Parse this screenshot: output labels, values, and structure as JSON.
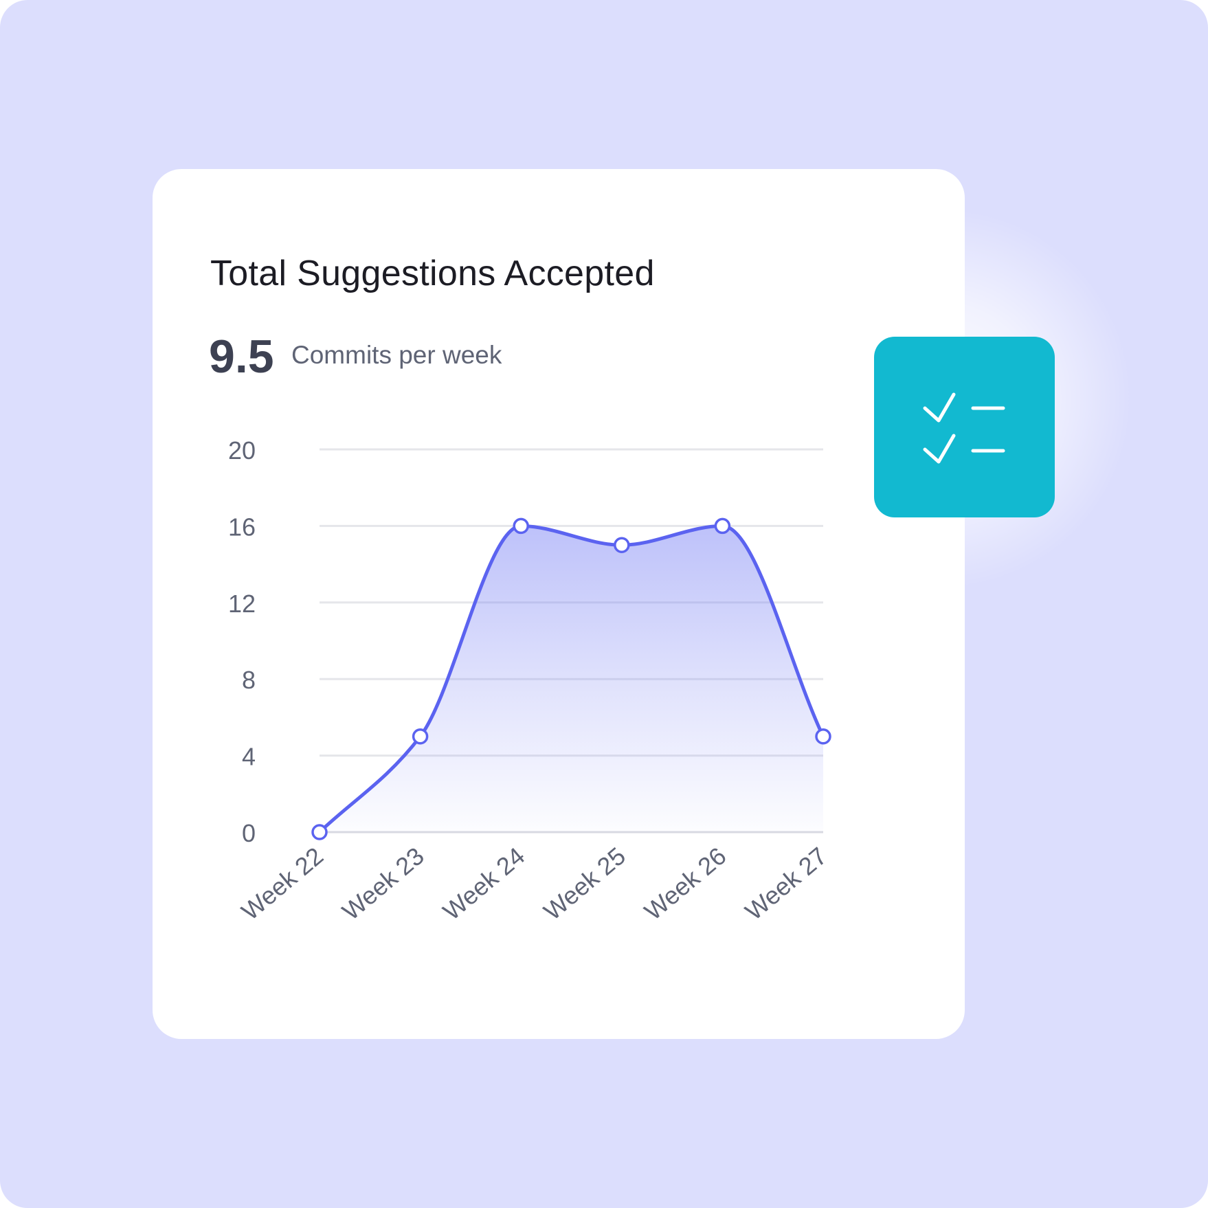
{
  "colors": {
    "background": "#dcdefd",
    "card": "#ffffff",
    "line": "#5b63f0",
    "area": "#7c84f4",
    "grid": "#e5e6ea",
    "badge": "#12b9d0",
    "badge_icon": "#ffffff"
  },
  "header": {
    "title": "Total Suggestions Accepted",
    "metric_value": "9.5",
    "metric_label": "Commits per week"
  },
  "badge": {
    "icon": "checklist-icon"
  },
  "chart_data": {
    "type": "area",
    "categories": [
      "Week 22",
      "Week 23",
      "Week 24",
      "Week 25",
      "Week 26",
      "Week 27"
    ],
    "series": [
      {
        "values": [
          0,
          5,
          16,
          15,
          16,
          5
        ]
      }
    ],
    "yticks": [
      0,
      4,
      8,
      12,
      16,
      20
    ],
    "ylim": [
      0,
      20
    ],
    "grid": true,
    "markers": true,
    "smooth": true
  }
}
